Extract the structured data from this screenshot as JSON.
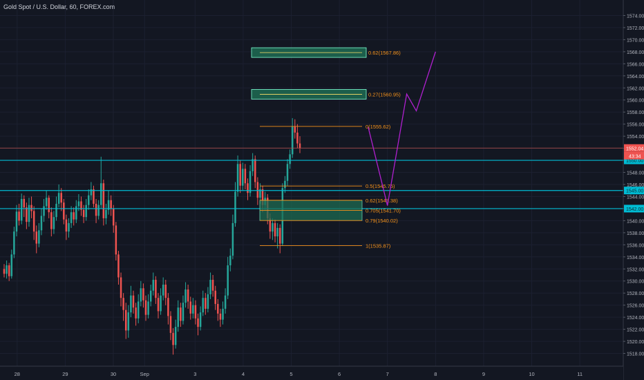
{
  "header": {
    "title": "Gold Spot / U.S. Dollar, 60, FOREX.com"
  },
  "colors": {
    "background": "#131722",
    "up": "#26a69a",
    "down": "#ef5350",
    "cyan_level": "#00bcd4",
    "price_line": "#c0504d",
    "fib": "#f7931a",
    "zone_fill": "#1e6b52",
    "zone_border": "#7fffd4",
    "projection": "#b020d0",
    "axis_text": "#b2b5be"
  },
  "chart_data": {
    "type": "candlestick",
    "symbol": "Gold Spot / U.S. Dollar",
    "interval": "60",
    "source": "FOREX.com",
    "y_axis": {
      "min": 1516,
      "max": 1576,
      "ticks": [
        1518,
        1520,
        1522,
        1524,
        1526,
        1528,
        1530,
        1532,
        1534,
        1536,
        1538,
        1540,
        1542,
        1544,
        1546,
        1548,
        1550,
        1552,
        1554,
        1556,
        1558,
        1560,
        1562,
        1564,
        1566,
        1568,
        1570,
        1572,
        1574
      ]
    },
    "x_axis": {
      "ticks": [
        {
          "label": "28",
          "pos": 0.5
        },
        {
          "label": "29",
          "pos": 1.5
        },
        {
          "label": "30",
          "pos": 2.5
        },
        {
          "label": "Sep",
          "pos": 3.15
        },
        {
          "label": "3",
          "pos": 4.2
        },
        {
          "label": "4",
          "pos": 5.2
        },
        {
          "label": "5",
          "pos": 6.2
        },
        {
          "label": "6",
          "pos": 7.2
        },
        {
          "label": "7",
          "pos": 8.2
        },
        {
          "label": "8",
          "pos": 9.2
        },
        {
          "label": "9",
          "pos": 10.2
        },
        {
          "label": "10",
          "pos": 11.2
        },
        {
          "label": "11",
          "pos": 12.2
        }
      ]
    },
    "last_price": 1552.04,
    "countdown": "43:34",
    "horizontal_levels": [
      1550.0,
      1545.0,
      1542.0
    ],
    "fib_levels": [
      {
        "label": "0(1555.62)",
        "value": 1555.62
      },
      {
        "label": "0.5(1545.75)",
        "value": 1545.75
      },
      {
        "label": "0.62(1543.38)",
        "value": 1543.38
      },
      {
        "label": "0.705(1541.70)",
        "value": 1541.7
      },
      {
        "label": "0.79(1540.02)",
        "value": 1540.02
      },
      {
        "label": "1(1535.87)",
        "value": 1535.87
      }
    ],
    "extension_zones": [
      {
        "label": "0.62(1567.86)",
        "value": 1567.86
      },
      {
        "label": "0.27(1560.95)",
        "value": 1560.95
      }
    ],
    "demand_zone": {
      "top": 1543.38,
      "bottom": 1540.02
    },
    "projection_path": [
      {
        "t": 7.8,
        "price": 1555.5
      },
      {
        "t": 8.2,
        "price": 1542.5
      },
      {
        "t": 8.6,
        "price": 1561
      },
      {
        "t": 8.8,
        "price": 1558.2
      },
      {
        "t": 9.2,
        "price": 1568
      }
    ],
    "candles": [
      [
        1532,
        1531.2,
        1532.8,
        1530.6
      ],
      [
        1531.2,
        1532.6,
        1533.4,
        1530.4
      ],
      [
        1532.6,
        1530.8,
        1533,
        1530
      ],
      [
        1530.8,
        1534.4,
        1535.2,
        1530.4
      ],
      [
        1534.4,
        1538.2,
        1539,
        1533.8
      ],
      [
        1538.2,
        1541.5,
        1542.6,
        1537.4
      ],
      [
        1541.5,
        1540,
        1542.8,
        1539.2
      ],
      [
        1540,
        1543.6,
        1544.5,
        1539.4
      ],
      [
        1543.6,
        1542.2,
        1544.2,
        1540.6
      ],
      [
        1542.2,
        1539.8,
        1543,
        1538.6
      ],
      [
        1539.8,
        1542.6,
        1543.8,
        1539
      ],
      [
        1542.6,
        1541.6,
        1544,
        1540.4
      ],
      [
        1541.6,
        1538.2,
        1542.4,
        1536.8
      ],
      [
        1538.2,
        1536.2,
        1539.2,
        1534.6
      ],
      [
        1536.2,
        1538.4,
        1539.6,
        1535.6
      ],
      [
        1538.4,
        1540.8,
        1542,
        1537.6
      ],
      [
        1540.8,
        1542.4,
        1543.6,
        1539.8
      ],
      [
        1542.4,
        1543.8,
        1545,
        1541.8
      ],
      [
        1543.8,
        1541.4,
        1544.2,
        1540.4
      ],
      [
        1541.4,
        1538.6,
        1542.2,
        1537.4
      ],
      [
        1538.6,
        1540.6,
        1541.6,
        1537.8
      ],
      [
        1540.6,
        1542.8,
        1544,
        1540
      ],
      [
        1542.8,
        1544.6,
        1546,
        1542.2
      ],
      [
        1544.6,
        1543,
        1545.4,
        1541.6
      ],
      [
        1543,
        1540.2,
        1543.6,
        1539.4
      ],
      [
        1540.2,
        1538.2,
        1541,
        1536.8
      ],
      [
        1538.2,
        1539.6,
        1540.4,
        1537.2
      ],
      [
        1539.6,
        1541.4,
        1542.4,
        1538.8
      ],
      [
        1541.4,
        1540.2,
        1542.2,
        1539.2
      ],
      [
        1540.2,
        1542.4,
        1543.4,
        1539.6
      ],
      [
        1542.4,
        1543.2,
        1544.4,
        1541.6
      ],
      [
        1543.2,
        1541.8,
        1544,
        1540.8
      ],
      [
        1541.8,
        1540.6,
        1542.6,
        1539.6
      ],
      [
        1540.6,
        1542.6,
        1543.6,
        1540
      ],
      [
        1542.6,
        1544.2,
        1545.2,
        1541.8
      ],
      [
        1544.2,
        1545.2,
        1546.4,
        1543.4
      ],
      [
        1545.2,
        1542.8,
        1545.8,
        1542.2
      ],
      [
        1542.8,
        1540.8,
        1543.6,
        1539.6
      ],
      [
        1540.8,
        1542.6,
        1543.4,
        1540.2
      ],
      [
        1542.6,
        1546.2,
        1550.6,
        1542
      ],
      [
        1546.2,
        1540.4,
        1546.8,
        1539.2
      ],
      [
        1540.4,
        1541.8,
        1542.8,
        1539.4
      ],
      [
        1541.8,
        1543.4,
        1545,
        1541
      ],
      [
        1543.4,
        1542,
        1544.2,
        1540.8
      ],
      [
        1542,
        1539.2,
        1542.6,
        1538
      ],
      [
        1539.2,
        1534.4,
        1539.8,
        1533.4
      ],
      [
        1534.4,
        1530.6,
        1535,
        1529.4
      ],
      [
        1530.6,
        1527.2,
        1531.4,
        1525.8
      ],
      [
        1527.2,
        1525.2,
        1528,
        1523.4
      ],
      [
        1525.2,
        1521.8,
        1526.4,
        1520.4
      ],
      [
        1521.8,
        1524.8,
        1526,
        1520.6
      ],
      [
        1524.8,
        1527.6,
        1529.2,
        1524
      ],
      [
        1527.6,
        1525.6,
        1528.4,
        1524.6
      ],
      [
        1525.6,
        1523.8,
        1526.4,
        1522.6
      ],
      [
        1523.8,
        1526.6,
        1527.8,
        1523
      ],
      [
        1526.6,
        1528.8,
        1530,
        1525.8
      ],
      [
        1528.8,
        1526.8,
        1529.6,
        1525.6
      ],
      [
        1526.8,
        1524.4,
        1527.6,
        1523.4
      ],
      [
        1524.4,
        1526.6,
        1527.8,
        1523.8
      ],
      [
        1526.6,
        1528.4,
        1529.4,
        1525.8
      ],
      [
        1528.4,
        1530.2,
        1531.4,
        1527.6
      ],
      [
        1530.2,
        1527.2,
        1530.8,
        1526.2
      ],
      [
        1527.2,
        1525,
        1528,
        1523.8
      ],
      [
        1525,
        1527.6,
        1528.8,
        1524.4
      ],
      [
        1527.6,
        1529.4,
        1530.6,
        1526.8
      ],
      [
        1529.4,
        1527.2,
        1530.2,
        1526
      ],
      [
        1527.2,
        1524.2,
        1528,
        1522.8
      ],
      [
        1524.2,
        1521.4,
        1525,
        1520.2
      ],
      [
        1521.4,
        1519.4,
        1522.2,
        1517.8
      ],
      [
        1519.4,
        1522.4,
        1523.6,
        1518.8
      ],
      [
        1522.4,
        1525.6,
        1526.8,
        1521.6
      ],
      [
        1525.6,
        1523.4,
        1526.4,
        1522.4
      ],
      [
        1523.4,
        1526.4,
        1527.6,
        1522.8
      ],
      [
        1526.4,
        1528.6,
        1529.8,
        1525.6
      ],
      [
        1528.6,
        1526.6,
        1529.4,
        1525.4
      ],
      [
        1526.6,
        1524.6,
        1527.4,
        1523.6
      ],
      [
        1524.6,
        1526,
        1527.2,
        1523.8
      ],
      [
        1526,
        1523.8,
        1526.8,
        1522.8
      ],
      [
        1523.8,
        1522.4,
        1524.6,
        1521
      ],
      [
        1522.4,
        1524.8,
        1525.8,
        1521.8
      ],
      [
        1524.8,
        1527.2,
        1528.4,
        1524.2
      ],
      [
        1527.2,
        1525.4,
        1528,
        1524.4
      ],
      [
        1525.4,
        1527.8,
        1529,
        1524.8
      ],
      [
        1527.8,
        1530.2,
        1531.4,
        1527
      ],
      [
        1530.2,
        1528.4,
        1531,
        1527.4
      ],
      [
        1528.4,
        1526.2,
        1529.2,
        1525.2
      ],
      [
        1526.2,
        1524.6,
        1527,
        1523.4
      ],
      [
        1524.6,
        1523.6,
        1525.4,
        1522.4
      ],
      [
        1523.6,
        1525.4,
        1526.6,
        1522.8
      ],
      [
        1525.4,
        1527.6,
        1528.8,
        1524.6
      ],
      [
        1527.6,
        1532.6,
        1534,
        1527
      ],
      [
        1532.6,
        1534.2,
        1535.4,
        1531.6
      ],
      [
        1534.2,
        1539.6,
        1541,
        1533.6
      ],
      [
        1539.6,
        1544.8,
        1546.4,
        1539
      ],
      [
        1544.8,
        1549.4,
        1550.8,
        1544
      ],
      [
        1549.4,
        1545.8,
        1550,
        1544.6
      ],
      [
        1545.8,
        1548.6,
        1549.6,
        1545
      ],
      [
        1548.6,
        1546.2,
        1549.4,
        1545.2
      ],
      [
        1546.2,
        1544.6,
        1547,
        1543.4
      ],
      [
        1544.6,
        1548.2,
        1549.2,
        1544
      ],
      [
        1548.2,
        1550.2,
        1551.2,
        1547.4
      ],
      [
        1550.2,
        1546.4,
        1550.8,
        1545.4
      ],
      [
        1546.4,
        1543.8,
        1547.2,
        1542.6
      ],
      [
        1543.8,
        1545.2,
        1546.2,
        1542.8
      ],
      [
        1545.2,
        1542.6,
        1545.8,
        1541.4
      ],
      [
        1542.6,
        1543.8,
        1544.8,
        1541.6
      ],
      [
        1543.8,
        1540.4,
        1544.4,
        1539.4
      ],
      [
        1540.4,
        1538.2,
        1541.2,
        1537
      ],
      [
        1538.2,
        1539.6,
        1540.4,
        1536.8
      ],
      [
        1539.6,
        1537.4,
        1540.2,
        1536.4
      ],
      [
        1537.4,
        1538.8,
        1539.6,
        1535.4
      ],
      [
        1538.8,
        1536.2,
        1539.4,
        1534.6
      ],
      [
        1536.2,
        1545.4,
        1546.2,
        1535.8
      ],
      [
        1545.4,
        1546.6,
        1547.4,
        1544.6
      ],
      [
        1546.6,
        1549.4,
        1550.2,
        1545.8
      ],
      [
        1549.4,
        1551,
        1551.8,
        1548.6
      ],
      [
        1551,
        1555.6,
        1557,
        1550.4
      ],
      [
        1555.6,
        1554.6,
        1556.8,
        1553.6
      ],
      [
        1554.6,
        1552.8,
        1556,
        1552
      ],
      [
        1552.8,
        1552.04,
        1554,
        1551.2
      ]
    ]
  }
}
